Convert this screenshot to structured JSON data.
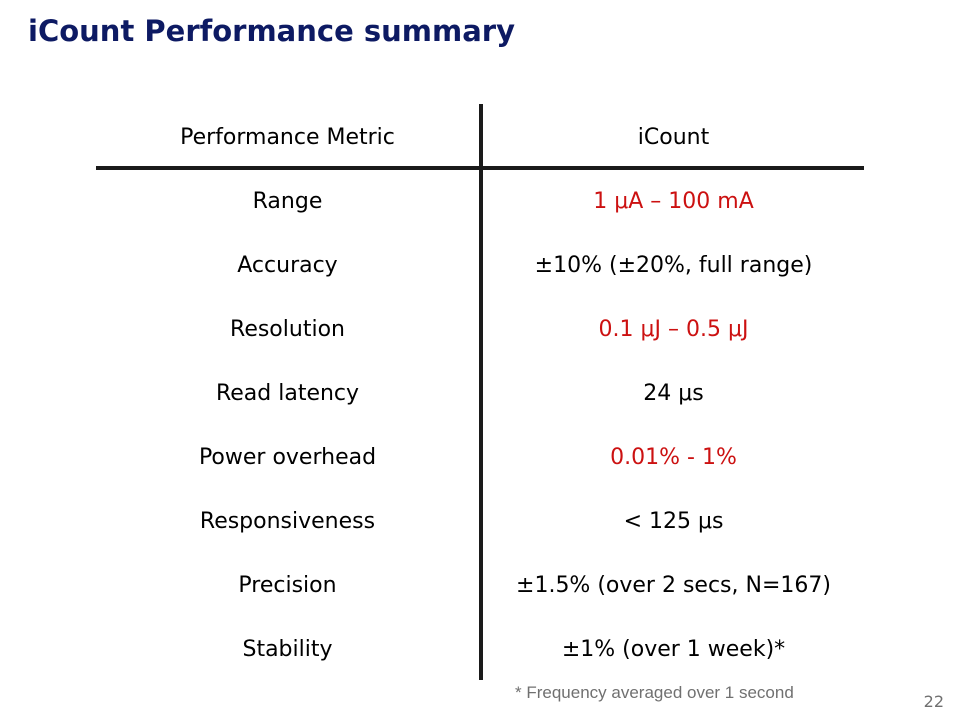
{
  "slide": {
    "title": "iCount Performance summary",
    "page_number": "22",
    "footnote": "* Frequency averaged over 1 second"
  },
  "table": {
    "headers": {
      "metric": "Performance Metric",
      "value": "iCount"
    },
    "rows": [
      {
        "metric": "Range",
        "value": "1 μA – 100 mA",
        "highlight": true
      },
      {
        "metric": "Accuracy",
        "value": "±10% (±20%, full range)",
        "highlight": false
      },
      {
        "metric": "Resolution",
        "value": "0.1 μJ – 0.5 μJ",
        "highlight": true
      },
      {
        "metric": "Read latency",
        "value": "24 μs",
        "highlight": false
      },
      {
        "metric": "Power overhead",
        "value": "0.01% - 1%",
        "highlight": true
      },
      {
        "metric": "Responsiveness",
        "value": "< 125 μs",
        "highlight": false
      },
      {
        "metric": "Precision",
        "value": "±1.5% (over 2 secs, N=167)",
        "highlight": false
      },
      {
        "metric": "Stability",
        "value": "±1% (over 1 week)*",
        "highlight": false
      }
    ]
  },
  "colors": {
    "title": "#0d1a63",
    "highlight": "#cc1111",
    "text": "#000000",
    "muted": "#707070"
  }
}
